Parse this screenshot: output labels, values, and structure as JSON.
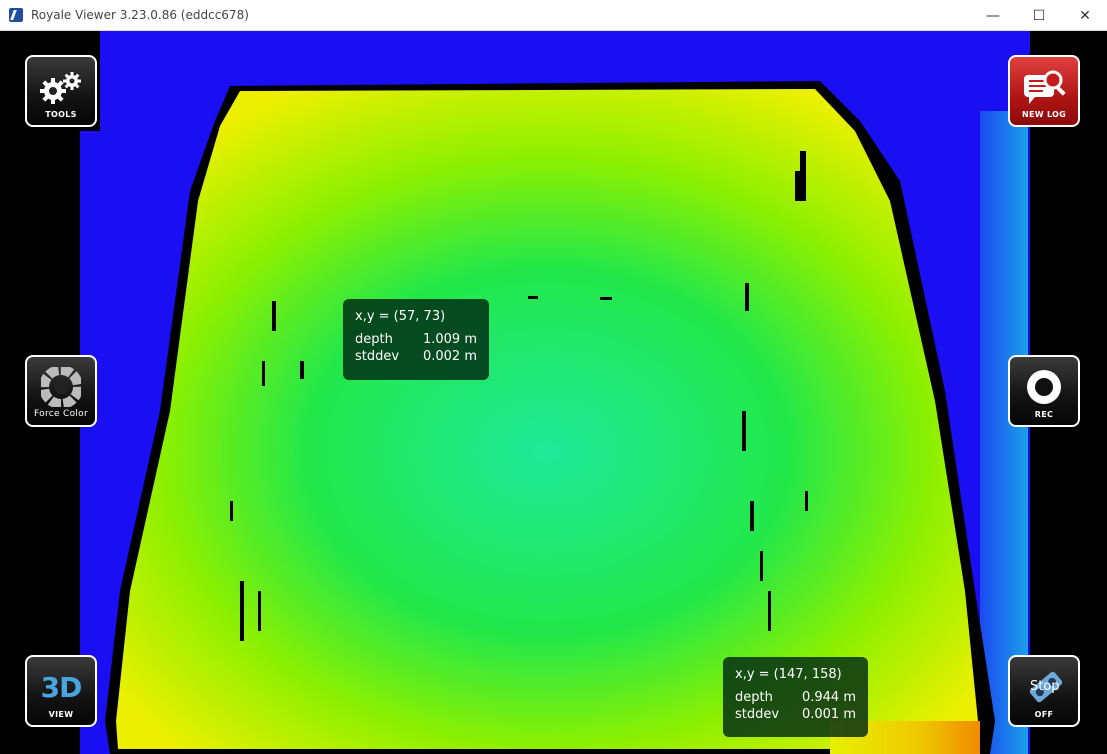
{
  "window": {
    "title": "Royale Viewer 3.23.0.86 (eddcc678)",
    "controls": {
      "minimize": "—",
      "maximize": "☐",
      "close": "✕"
    }
  },
  "buttons": {
    "tools": {
      "label": "TOOLS",
      "icon": "gears-icon"
    },
    "force_color": {
      "label": "Force Color",
      "icon": "color-wheel-icon"
    },
    "view_3d": {
      "label": "VIEW",
      "glyph": "3D"
    },
    "new_log": {
      "label": "NEW LOG",
      "icon": "log-search-icon"
    },
    "rec": {
      "label": "REC",
      "icon": "record-icon"
    },
    "stop": {
      "label": "OFF",
      "glyph": "Stop",
      "icon": "camera-stop-icon"
    }
  },
  "tooltips": [
    {
      "coord": "x,y = (57, 73)",
      "depth_label": "depth",
      "depth_value": "1.009 m",
      "stddev_label": "stddev",
      "stddev_value": "0.002 m"
    },
    {
      "coord": "x,y = (147, 158)",
      "depth_label": "depth",
      "depth_value": "0.944 m",
      "stddev_label": "stddev",
      "stddev_value": "0.001 m"
    }
  ],
  "colors": {
    "far": "#1a0ff2",
    "mid": "#1b8fe8",
    "near_yellow": "#e8f000",
    "center_green": "#22e86a",
    "invalid": "#000000",
    "new_log_red": "#c41c1c"
  }
}
